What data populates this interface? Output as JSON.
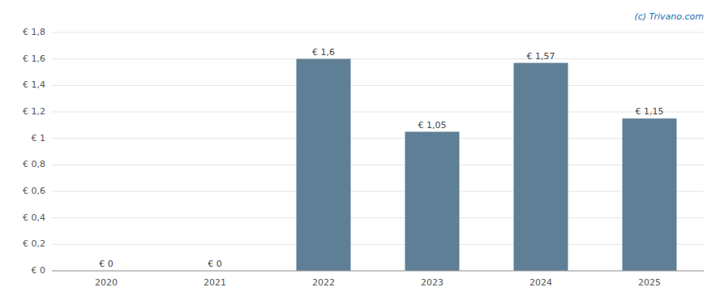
{
  "chart_data": {
    "type": "bar",
    "categories": [
      "2020",
      "2021",
      "2022",
      "2023",
      "2024",
      "2025"
    ],
    "values": [
      0,
      0,
      1.6,
      1.05,
      1.57,
      1.15
    ],
    "value_labels": [
      "€ 0",
      "€ 0",
      "€ 1,6",
      "€ 1,05",
      "€ 1,57",
      "€ 1,15"
    ],
    "data_labels": true,
    "color": "#5f7f96",
    "ylim": [
      0,
      1.8
    ],
    "yticks": [
      {
        "value": 0,
        "label": "€ 0"
      },
      {
        "value": 0.2,
        "label": "€ 0,2"
      },
      {
        "value": 0.4,
        "label": "€ 0,4"
      },
      {
        "value": 0.6,
        "label": "€ 0,6"
      },
      {
        "value": 0.8,
        "label": "€ 0,8"
      },
      {
        "value": 1.0,
        "label": "€ 1"
      },
      {
        "value": 1.2,
        "label": "€ 1,2"
      },
      {
        "value": 1.4,
        "label": "€ 1,4"
      },
      {
        "value": 1.6,
        "label": "€ 1,6"
      },
      {
        "value": 1.8,
        "label": "€ 1,8"
      }
    ],
    "grid": true,
    "annotations": [
      "(c) Trivano.com"
    ]
  }
}
